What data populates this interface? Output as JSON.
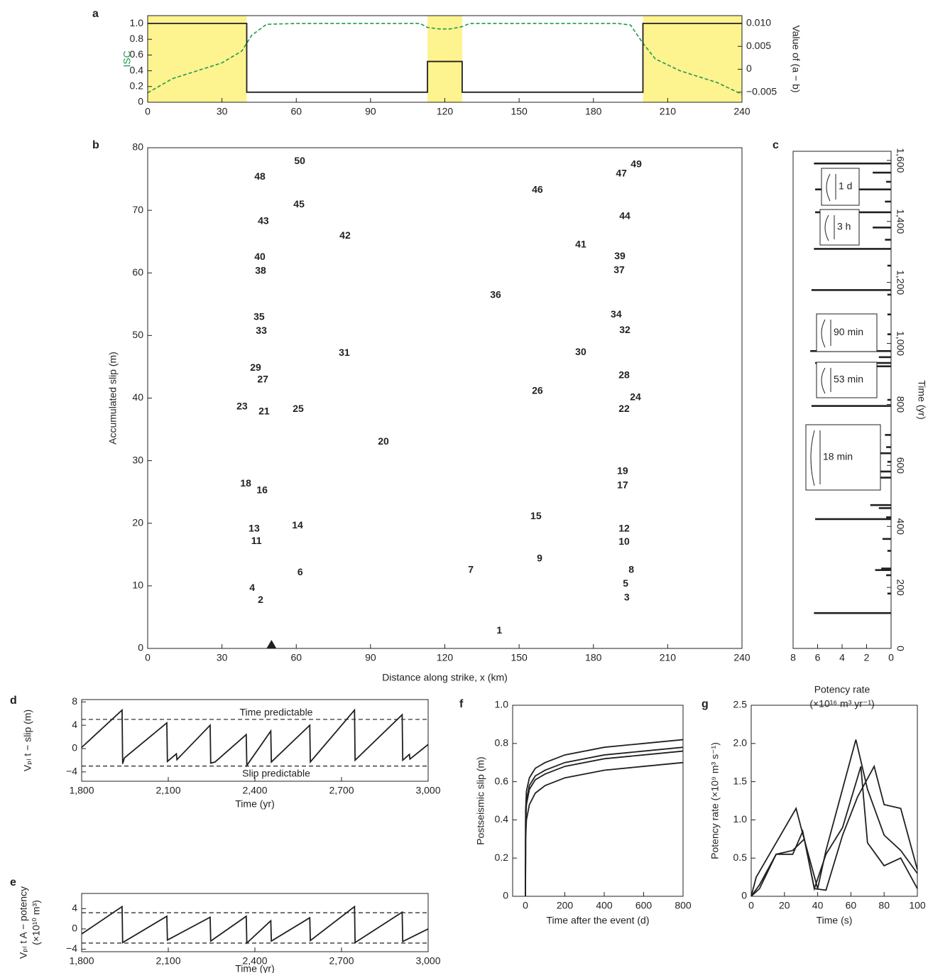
{
  "chart_data": [
    {
      "type": "line",
      "label": "a",
      "ylabel": "ISC",
      "y2label": "Value of (a − b)",
      "xlim": [
        0,
        240
      ],
      "xticks": [
        0,
        30,
        60,
        90,
        120,
        150,
        180,
        210,
        240
      ],
      "ylim": [
        0,
        1.1
      ],
      "yticks": [
        0,
        0.2,
        0.4,
        0.6,
        0.8,
        {
          "value": 1,
          "label": "1.0"
        }
      ],
      "y2lim": [
        -0.0072,
        0.0117
      ],
      "y2ticks": [
        {
          "value": -0.005,
          "label": "−0.005"
        },
        0,
        0.005,
        {
          "value": 0.01,
          "label": "0.010"
        }
      ],
      "shade": [
        [
          0,
          40
        ],
        [
          113,
          127
        ],
        [
          200,
          240
        ]
      ],
      "shade_color": "#fdf38f",
      "series": [
        {
          "color": "#1f9a4c",
          "dash": true,
          "x": [
            0,
            10,
            20,
            30,
            38,
            42,
            48,
            60,
            110,
            113,
            118,
            122,
            127,
            130,
            190,
            195,
            200,
            205,
            215,
            230,
            240
          ],
          "values": [
            0.12,
            0.3,
            0.4,
            0.5,
            0.65,
            0.85,
            0.99,
            1.0,
            1.0,
            0.95,
            0.93,
            0.93,
            0.96,
            1.0,
            1.0,
            0.98,
            0.75,
            0.55,
            0.4,
            0.25,
            0.1
          ]
        },
        {
          "color": "#231f20",
          "axis": "y2",
          "x": [
            0,
            40,
            40,
            113,
            113,
            127,
            127,
            200,
            200,
            240
          ],
          "values": [
            0.01,
            0.01,
            -0.005,
            -0.005,
            0.0017,
            0.0017,
            -0.005,
            -0.005,
            0.01,
            0.01
          ]
        }
      ]
    },
    {
      "type": "slip",
      "label": "b",
      "xlabel": "Distance along strike, x (km)",
      "ylabel": "Accumulated slip (m)",
      "xlim": [
        0,
        240
      ],
      "xticks": [
        0,
        30,
        60,
        90,
        120,
        150,
        180,
        210,
        240
      ],
      "ylim": [
        0,
        80
      ],
      "yticks": [
        0,
        10,
        20,
        30,
        40,
        50,
        60,
        70,
        80
      ],
      "marker_x": 50,
      "events": [
        "1",
        "2",
        "3",
        "4",
        "5",
        "6",
        "7",
        "8",
        "9",
        "10",
        "11",
        "12",
        "13",
        "14",
        "15",
        "16",
        "17",
        "18",
        "19",
        "20",
        "21",
        "22",
        "23",
        "24",
        "25",
        "26",
        "27",
        "28",
        "29",
        "30",
        "31",
        "32",
        "33",
        "34",
        "35",
        "36",
        "37",
        "38",
        "39",
        "40",
        "41",
        "42",
        "43",
        "44",
        "45",
        "46",
        "47",
        "48",
        "49",
        "50"
      ]
    },
    {
      "type": "barh",
      "label": "c",
      "xlabel": [
        "Potency rate",
        "(×10¹⁶ m³ yr⁻¹)"
      ],
      "ylabel": "Time (yr)",
      "xlim": [
        8,
        0
      ],
      "xticks": [
        8,
        6,
        4,
        2,
        0
      ],
      "ylim": [
        0,
        1630
      ],
      "yticks": [
        0,
        200,
        400,
        600,
        800,
        {
          "value": 1000,
          "label": "1,000"
        },
        {
          "value": 1200,
          "label": "1,200"
        },
        {
          "value": 1400,
          "label": "1,400"
        },
        {
          "value": 1600,
          "label": "1,600"
        }
      ],
      "color": "#231f20",
      "times": [
        116,
        180,
        240,
        257,
        262,
        320,
        359,
        424,
        430,
        460,
        470,
        560,
        580,
        612,
        640,
        660,
        700,
        795,
        815,
        925,
        936,
        955,
        975,
        1030,
        1095,
        1160,
        1175,
        1255,
        1310,
        1340,
        1380,
        1430,
        1465,
        1505,
        1530,
        1560,
        1590
      ],
      "values": [
        6.3,
        0.3,
        0.4,
        1.3,
        0.8,
        0.3,
        0.7,
        6.2,
        0.4,
        1.0,
        1.7,
        1.6,
        6.6,
        0.3,
        6.4,
        0.4,
        0.5,
        6.5,
        0.3,
        1.7,
        6.2,
        1.0,
        6.6,
        0.3,
        0.3,
        0.3,
        6.5,
        0.3,
        6.3,
        0.5,
        1.5,
        6.2,
        0.5,
        6.2,
        0.4,
        1.5,
        6.3
      ],
      "annotations": [
        "1 d",
        "3 h",
        "90 min",
        "53 min",
        "18 min"
      ]
    },
    {
      "type": "line",
      "label": "d",
      "xlabel": "Time (yr)",
      "ylabel": "Vₚₗ t − slip (m)",
      "xlim": [
        1800,
        3000
      ],
      "xticks": [
        {
          "value": 1800,
          "label": "1,800"
        },
        {
          "value": 2100,
          "label": "2,100"
        },
        {
          "value": 2400,
          "label": "2,400"
        },
        {
          "value": 2700,
          "label": "2,700"
        },
        {
          "value": 3000,
          "label": "3,000"
        }
      ],
      "ylim": [
        -5.6,
        8.4
      ],
      "yticks": [
        {
          "value": -4,
          "label": "−4"
        },
        0,
        4,
        8
      ],
      "hlines": [
        5,
        -3
      ],
      "annotations": [
        "Time predictable",
        "Slip predictable"
      ],
      "color": "#231f20",
      "x": [
        1800,
        1940,
        1942,
        1948,
        2095,
        2097,
        2128,
        2130,
        2245,
        2247,
        2262,
        2370,
        2372,
        2455,
        2457,
        2590,
        2592,
        2745,
        2747,
        2910,
        2912,
        2935,
        2937,
        3000
      ],
      "values": [
        0.2,
        6.6,
        -2.6,
        -1.6,
        4.4,
        -2.2,
        -0.9,
        -1.9,
        4.0,
        -2.5,
        -2.3,
        2.4,
        -2.9,
        3.0,
        -2.3,
        4.0,
        -2.3,
        6.6,
        -2.0,
        5.8,
        -2.0,
        -1.0,
        -1.8,
        0.7
      ]
    },
    {
      "type": "line",
      "label": "e",
      "xlabel": "Time (yr)",
      "ylabel": [
        "Vₚₗ t A − potency",
        "(×10¹⁰ m³)"
      ],
      "xlim": [
        1800,
        3000
      ],
      "xticks": [
        {
          "value": 1800,
          "label": "1,800"
        },
        {
          "value": 2100,
          "label": "2,100"
        },
        {
          "value": 2400,
          "label": "2,400"
        },
        {
          "value": 2700,
          "label": "2,700"
        },
        {
          "value": 3000,
          "label": "3,000"
        }
      ],
      "ylim": [
        -4.5,
        7
      ],
      "yticks": [
        {
          "value": -4,
          "label": "−4"
        },
        0,
        4
      ],
      "hlines": [
        3.2,
        -2.8
      ],
      "color": "#231f20",
      "x": [
        1800,
        1940,
        1942,
        2095,
        2097,
        2245,
        2247,
        2370,
        2372,
        2455,
        2457,
        2590,
        2592,
        2745,
        2747,
        2910,
        2912,
        3000
      ],
      "values": [
        -1.0,
        4.4,
        -2.7,
        2.5,
        -2.2,
        2.3,
        -2.4,
        2.5,
        -2.8,
        1.6,
        -2.4,
        2.2,
        -2.3,
        4.4,
        -2.7,
        3.3,
        -2.5,
        0.0
      ]
    },
    {
      "type": "line",
      "label": "f",
      "xlabel": "Time after the event (d)",
      "ylabel": "Postseismic slip (m)",
      "xlim": [
        -65,
        800
      ],
      "xticks": [
        0,
        200,
        400,
        600,
        800
      ],
      "ylim": [
        0,
        1
      ],
      "yticks": [
        0,
        0.2,
        0.4,
        0.6,
        0.8,
        {
          "value": 1,
          "label": "1.0"
        }
      ],
      "x": [
        0,
        1,
        5,
        20,
        50,
        100,
        200,
        400,
        600,
        800
      ],
      "series": [
        {
          "color": "#231f20",
          "values": [
            0,
            0.45,
            0.55,
            0.62,
            0.67,
            0.7,
            0.74,
            0.78,
            0.8,
            0.82
          ]
        },
        {
          "color": "#231f20",
          "values": [
            0,
            0.4,
            0.5,
            0.58,
            0.63,
            0.66,
            0.7,
            0.74,
            0.76,
            0.78
          ]
        },
        {
          "color": "#231f20",
          "values": [
            0,
            0.38,
            0.48,
            0.56,
            0.61,
            0.64,
            0.68,
            0.72,
            0.74,
            0.76
          ]
        },
        {
          "color": "#231f20",
          "values": [
            0,
            0.3,
            0.4,
            0.48,
            0.54,
            0.58,
            0.62,
            0.66,
            0.68,
            0.7
          ]
        }
      ]
    },
    {
      "type": "line",
      "label": "g",
      "xlabel": "Time (s)",
      "ylabel": "Potency rate (×10⁹ m³ s⁻¹)",
      "xlim": [
        0,
        100
      ],
      "xticks": [
        0,
        20,
        40,
        60,
        80,
        100
      ],
      "ylim": [
        0,
        2.5
      ],
      "yticks": [
        0,
        0.5,
        {
          "value": 1,
          "label": "1.0"
        },
        1.5,
        {
          "value": 2,
          "label": "2.0"
        },
        2.5
      ],
      "series": [
        {
          "color": "#231f20",
          "x": [
            0,
            3,
            27,
            30,
            35,
            40,
            45,
            63,
            70,
            80,
            90,
            100
          ],
          "values": [
            0,
            0.25,
            1.15,
            0.9,
            0.5,
            0.1,
            0.6,
            2.05,
            1.4,
            0.8,
            0.6,
            0.3
          ]
        },
        {
          "color": "#231f20",
          "x": [
            0,
            5,
            15,
            25,
            31,
            38,
            45,
            55,
            66,
            70,
            80,
            90,
            100
          ],
          "values": [
            0,
            0.1,
            0.55,
            0.55,
            0.85,
            0.1,
            0.55,
            0.9,
            1.7,
            0.7,
            0.4,
            0.5,
            0.1
          ]
        },
        {
          "color": "#231f20",
          "x": [
            0,
            5,
            15,
            25,
            32,
            38,
            45,
            55,
            64,
            74,
            80,
            90,
            100
          ],
          "values": [
            0,
            0.15,
            0.55,
            0.6,
            0.75,
            0.1,
            0.08,
            0.8,
            1.3,
            1.7,
            1.2,
            1.15,
            0.35
          ]
        }
      ]
    }
  ]
}
